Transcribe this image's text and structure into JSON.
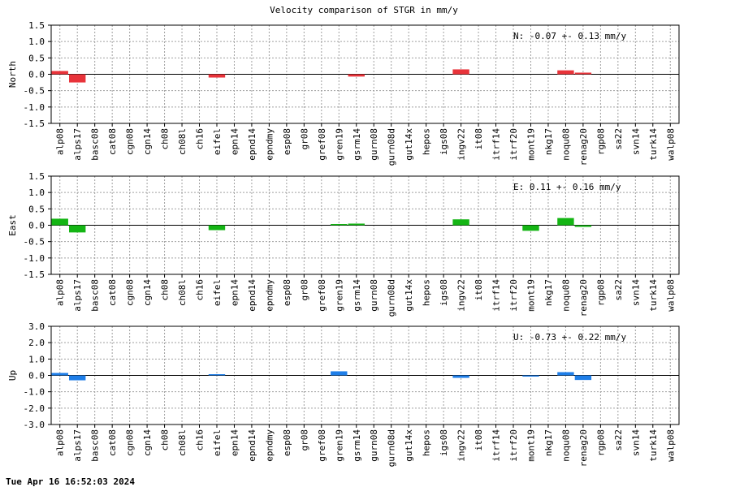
{
  "title": "Velocity comparison of STGR in mm/y",
  "footer": "Tue Apr 16 16:52:03 2024",
  "colors": {
    "north": "#e8333a",
    "east": "#14b514",
    "up": "#1e7ee8",
    "grid": "#a0a0a0"
  },
  "chart_data": [
    {
      "type": "bar",
      "ylabel": "North",
      "ylim": [
        -1.5,
        1.5
      ],
      "yticks": [
        1.5,
        1.0,
        0.5,
        0.0,
        -0.5,
        -1.0,
        -1.5
      ],
      "ytick_labels": [
        "1.5",
        "1.0",
        "0.5",
        "0.0",
        "-0.5",
        "-1.0",
        "-1.5"
      ],
      "grid": true,
      "annotation": "N:  -0.07 +-  0.13 mm/y",
      "categories": [
        "alp08",
        "alps17",
        "basc08",
        "cat08",
        "cgn08",
        "cgn14",
        "ch08",
        "ch08l",
        "ch16",
        "eifel",
        "epn14",
        "epnd14",
        "epndmy",
        "esp08",
        "gr08",
        "gref08",
        "gren19",
        "gsrm14",
        "gurn08",
        "gurn08d",
        "gut14x",
        "hepos",
        "igs08",
        "ingv22",
        "it08",
        "itrf14",
        "itrf20",
        "mont19",
        "nkg17",
        "noqu08",
        "renag20",
        "rgp08",
        "sa22",
        "svn14",
        "turk14",
        "walp08"
      ],
      "values": [
        0.1,
        -0.25,
        null,
        null,
        null,
        null,
        null,
        null,
        null,
        -0.1,
        null,
        null,
        null,
        null,
        null,
        null,
        null,
        -0.07,
        null,
        null,
        null,
        null,
        null,
        0.15,
        null,
        null,
        null,
        null,
        null,
        0.12,
        0.05,
        null,
        null,
        null,
        null,
        null
      ]
    },
    {
      "type": "bar",
      "ylabel": "East",
      "ylim": [
        -1.5,
        1.5
      ],
      "yticks": [
        1.5,
        1.0,
        0.5,
        0.0,
        -0.5,
        -1.0,
        -1.5
      ],
      "ytick_labels": [
        "1.5",
        "1.0",
        "0.5",
        "0.0",
        "-0.5",
        "-1.0",
        "-1.5"
      ],
      "grid": true,
      "annotation": "E:   0.11 +-  0.16 mm/y",
      "categories": [
        "alp08",
        "alps17",
        "basc08",
        "cat08",
        "cgn08",
        "cgn14",
        "ch08",
        "ch08l",
        "ch16",
        "eifel",
        "epn14",
        "epnd14",
        "epndmy",
        "esp08",
        "gr08",
        "gref08",
        "gren19",
        "gsrm14",
        "gurn08",
        "gurn08d",
        "gut14x",
        "hepos",
        "igs08",
        "ingv22",
        "it08",
        "itrf14",
        "itrf20",
        "mont19",
        "nkg17",
        "noqu08",
        "renag20",
        "rgp08",
        "sa22",
        "svn14",
        "turk14",
        "walp08"
      ],
      "values": [
        0.2,
        -0.22,
        null,
        null,
        null,
        null,
        null,
        null,
        null,
        -0.15,
        null,
        null,
        null,
        null,
        null,
        null,
        0.02,
        0.05,
        null,
        null,
        null,
        null,
        null,
        0.18,
        null,
        null,
        null,
        -0.17,
        null,
        0.22,
        -0.05,
        null,
        null,
        null,
        null,
        null
      ]
    },
    {
      "type": "bar",
      "ylabel": "Up",
      "ylim": [
        -3.0,
        3.0
      ],
      "yticks": [
        3.0,
        2.0,
        1.0,
        0.0,
        -1.0,
        -2.0,
        -3.0
      ],
      "ytick_labels": [
        "3.0",
        "2.0",
        "1.0",
        "0.0",
        "-1.0",
        "-2.0",
        "-3.0"
      ],
      "grid": true,
      "annotation": "U:  -0.73 +-  0.22 mm/y",
      "categories": [
        "alp08",
        "alps17",
        "basc08",
        "cat08",
        "cgn08",
        "cgn14",
        "ch08",
        "ch08l",
        "ch16",
        "eifel",
        "epn14",
        "epnd14",
        "epndmy",
        "esp08",
        "gr08",
        "gref08",
        "gren19",
        "gsrm14",
        "gurn08",
        "gurn08d",
        "gut14x",
        "hepos",
        "igs08",
        "ingv22",
        "it08",
        "itrf14",
        "itrf20",
        "mont19",
        "nkg17",
        "noqu08",
        "renag20",
        "rgp08",
        "sa22",
        "svn14",
        "turk14",
        "walp08"
      ],
      "values": [
        0.15,
        -0.3,
        null,
        null,
        null,
        null,
        null,
        null,
        null,
        0.05,
        null,
        null,
        null,
        null,
        null,
        null,
        0.25,
        null,
        null,
        null,
        null,
        null,
        null,
        -0.15,
        null,
        null,
        null,
        -0.07,
        null,
        0.2,
        -0.28,
        null,
        null,
        null,
        null,
        null
      ]
    }
  ]
}
